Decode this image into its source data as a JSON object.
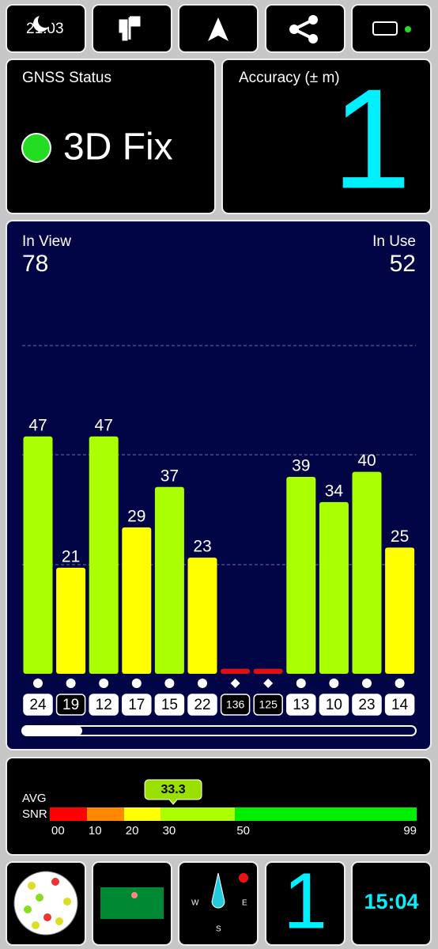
{
  "status_bar": {
    "time": "21:03"
  },
  "gnss_status": {
    "title": "GNSS Status",
    "fix": "3D Fix",
    "color": "#22dd22"
  },
  "accuracy": {
    "title": "Accuracy (± m)",
    "value": 1
  },
  "satellites": {
    "in_view_label": "In View",
    "in_view": 78,
    "in_use_label": "In Use",
    "in_use": 52,
    "prns": [
      "24",
      "19",
      "12",
      "17",
      "15",
      "22",
      "136",
      "125",
      "13",
      "10",
      "23",
      "14"
    ],
    "values": [
      47,
      21,
      47,
      29,
      37,
      23,
      1,
      1,
      39,
      34,
      40,
      25
    ],
    "value_labels": [
      "47",
      "21",
      "47",
      "29",
      "37",
      "23",
      null,
      null,
      "39",
      "34",
      "40",
      "25"
    ],
    "colors": [
      "#aaff00",
      "#ffff00",
      "#aaff00",
      "#ffff00",
      "#aaff00",
      "#ffff00",
      "#dd1111",
      "#dd1111",
      "#aaff00",
      "#aaff00",
      "#aaff00",
      "#ffff00"
    ],
    "used": [
      true,
      true,
      true,
      true,
      true,
      true,
      false,
      false,
      true,
      true,
      true,
      true
    ],
    "label_filled": [
      true,
      false,
      true,
      true,
      true,
      true,
      false,
      false,
      true,
      true,
      true,
      true
    ],
    "ylim": [
      0,
      70
    ]
  },
  "snr": {
    "avg_label": "AVG",
    "snr_label": "SNR",
    "avg": 33.3,
    "ticks": [
      {
        "value": 0,
        "label": "00"
      },
      10,
      20,
      30,
      50,
      99
    ],
    "colors": [
      "#ff0000",
      "#ff8800",
      "#ffff00",
      "#aaff00",
      "#00ee00"
    ]
  },
  "bottom_bar": {
    "accuracy": 1,
    "clock": "15:04",
    "compass": [
      "W",
      "E",
      "S"
    ]
  }
}
